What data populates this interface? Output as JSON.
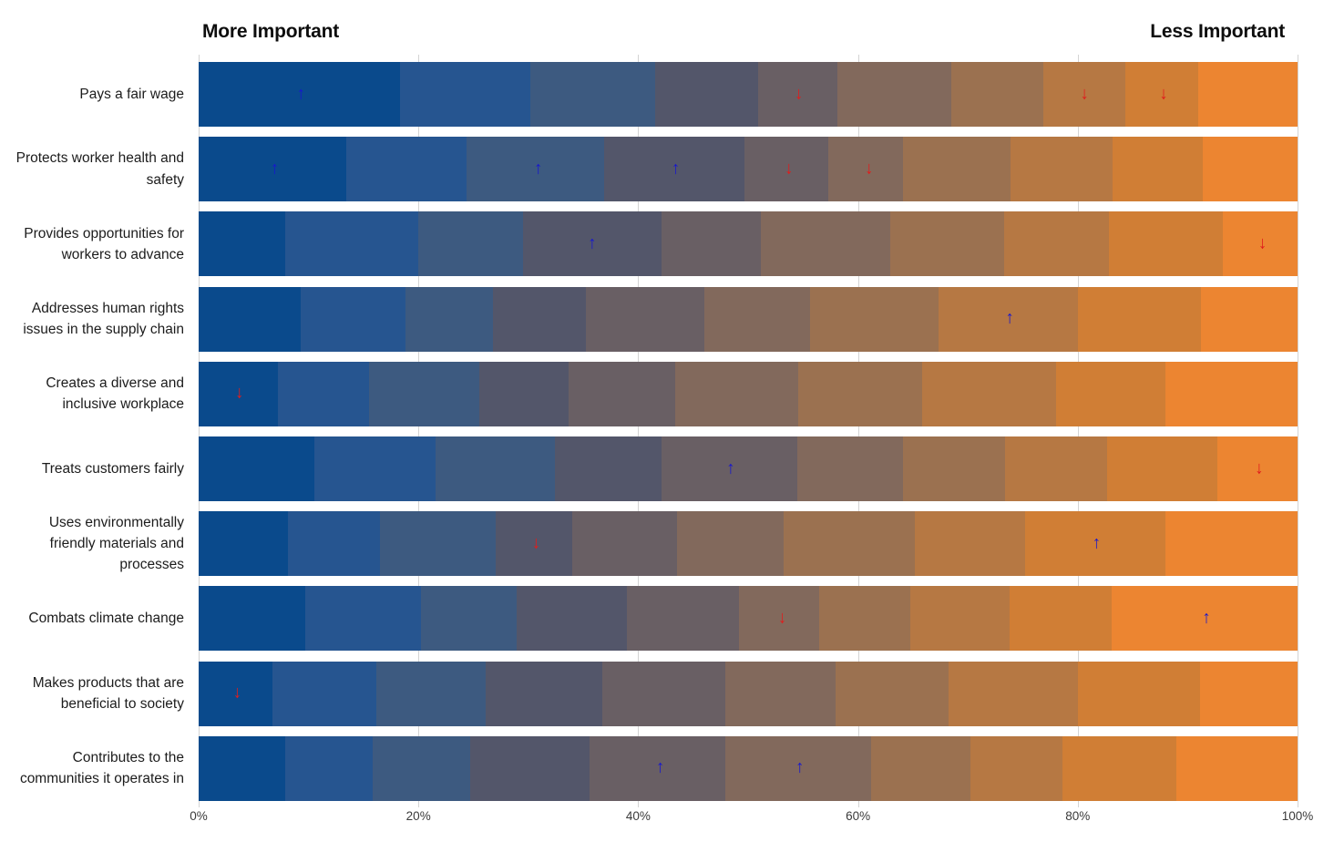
{
  "chart_data": {
    "type": "bar",
    "variant": "horizontal-100pct-stacked-ranking",
    "title_left": "More Important",
    "title_right": "Less Important",
    "x_axis": {
      "ticks": [
        "0%",
        "20%",
        "40%",
        "60%",
        "80%",
        "100%"
      ],
      "range": [
        0,
        100
      ],
      "gridlines": true
    },
    "rank_colors": [
      "#0a4a8c",
      "#265590",
      "#3d5a80",
      "#53566a",
      "#695f64",
      "#82695c",
      "#9b7150",
      "#b67843",
      "#d07e35",
      "#ec8531"
    ],
    "arrow_colors": {
      "up": "#1717cf",
      "down": "#e01d1d"
    },
    "rows": [
      {
        "category": "Pays a fair wage",
        "values": [
          18.3,
          11.9,
          11.3,
          9.4,
          7.2,
          10.4,
          8.4,
          7.4,
          6.7,
          9.0
        ],
        "arrows": [
          {
            "pct": 9.3,
            "dir": "up"
          },
          {
            "pct": 54.6,
            "dir": "down"
          },
          {
            "pct": 80.6,
            "dir": "down"
          },
          {
            "pct": 87.8,
            "dir": "down"
          }
        ]
      },
      {
        "category": "Protects worker health and safety",
        "values": [
          13.4,
          11.0,
          12.5,
          12.8,
          7.6,
          6.8,
          9.8,
          9.3,
          8.2,
          8.6
        ],
        "arrows": [
          {
            "pct": 6.9,
            "dir": "up"
          },
          {
            "pct": 30.9,
            "dir": "up"
          },
          {
            "pct": 43.4,
            "dir": "up"
          },
          {
            "pct": 53.7,
            "dir": "down"
          },
          {
            "pct": 61.0,
            "dir": "down"
          }
        ]
      },
      {
        "category": "Provides opportunities for workers to advance",
        "values": [
          7.9,
          12.1,
          9.5,
          12.6,
          9.1,
          11.7,
          10.4,
          9.5,
          10.4,
          6.8
        ],
        "arrows": [
          {
            "pct": 35.8,
            "dir": "up"
          },
          {
            "pct": 96.8,
            "dir": "down"
          }
        ]
      },
      {
        "category": "Addresses human rights issues in the supply chain",
        "values": [
          9.3,
          9.5,
          8.0,
          8.4,
          10.8,
          9.6,
          11.7,
          12.7,
          11.2,
          8.8
        ],
        "arrows": [
          {
            "pct": 73.8,
            "dir": "up"
          }
        ]
      },
      {
        "category": "Creates a diverse and inclusive workplace",
        "values": [
          7.2,
          8.3,
          10.0,
          8.2,
          9.7,
          11.2,
          11.2,
          12.2,
          10.0,
          12.0
        ],
        "arrows": [
          {
            "pct": 3.7,
            "dir": "down"
          }
        ]
      },
      {
        "category": "Treats customers fairly",
        "values": [
          10.5,
          11.1,
          10.8,
          9.7,
          12.4,
          9.6,
          9.3,
          9.3,
          10.0,
          7.3
        ],
        "arrows": [
          {
            "pct": 48.4,
            "dir": "up"
          },
          {
            "pct": 96.5,
            "dir": "down"
          }
        ]
      },
      {
        "category": "Uses environmentally friendly materials and processes",
        "values": [
          8.1,
          8.4,
          10.5,
          7.0,
          9.5,
          9.7,
          12.0,
          10.0,
          12.8,
          12.0
        ],
        "arrows": [
          {
            "pct": 30.7,
            "dir": "down"
          },
          {
            "pct": 81.7,
            "dir": "up"
          }
        ]
      },
      {
        "category": "Combats climate change",
        "values": [
          9.7,
          10.5,
          8.7,
          10.1,
          10.2,
          7.3,
          8.3,
          9.0,
          9.3,
          16.9
        ],
        "arrows": [
          {
            "pct": 53.1,
            "dir": "down"
          },
          {
            "pct": 91.7,
            "dir": "up"
          }
        ]
      },
      {
        "category": "Makes products that are beneficial to society",
        "values": [
          6.7,
          9.5,
          9.9,
          10.6,
          11.2,
          10.1,
          10.2,
          11.8,
          11.1,
          8.9
        ],
        "arrows": [
          {
            "pct": 3.5,
            "dir": "down"
          }
        ]
      },
      {
        "category": "Contributes to the communities it operates in",
        "values": [
          7.9,
          7.9,
          8.9,
          10.9,
          12.3,
          13.3,
          9.0,
          8.4,
          10.4,
          11.0
        ],
        "arrows": [
          {
            "pct": 42.0,
            "dir": "up"
          },
          {
            "pct": 54.7,
            "dir": "up"
          }
        ]
      }
    ]
  }
}
